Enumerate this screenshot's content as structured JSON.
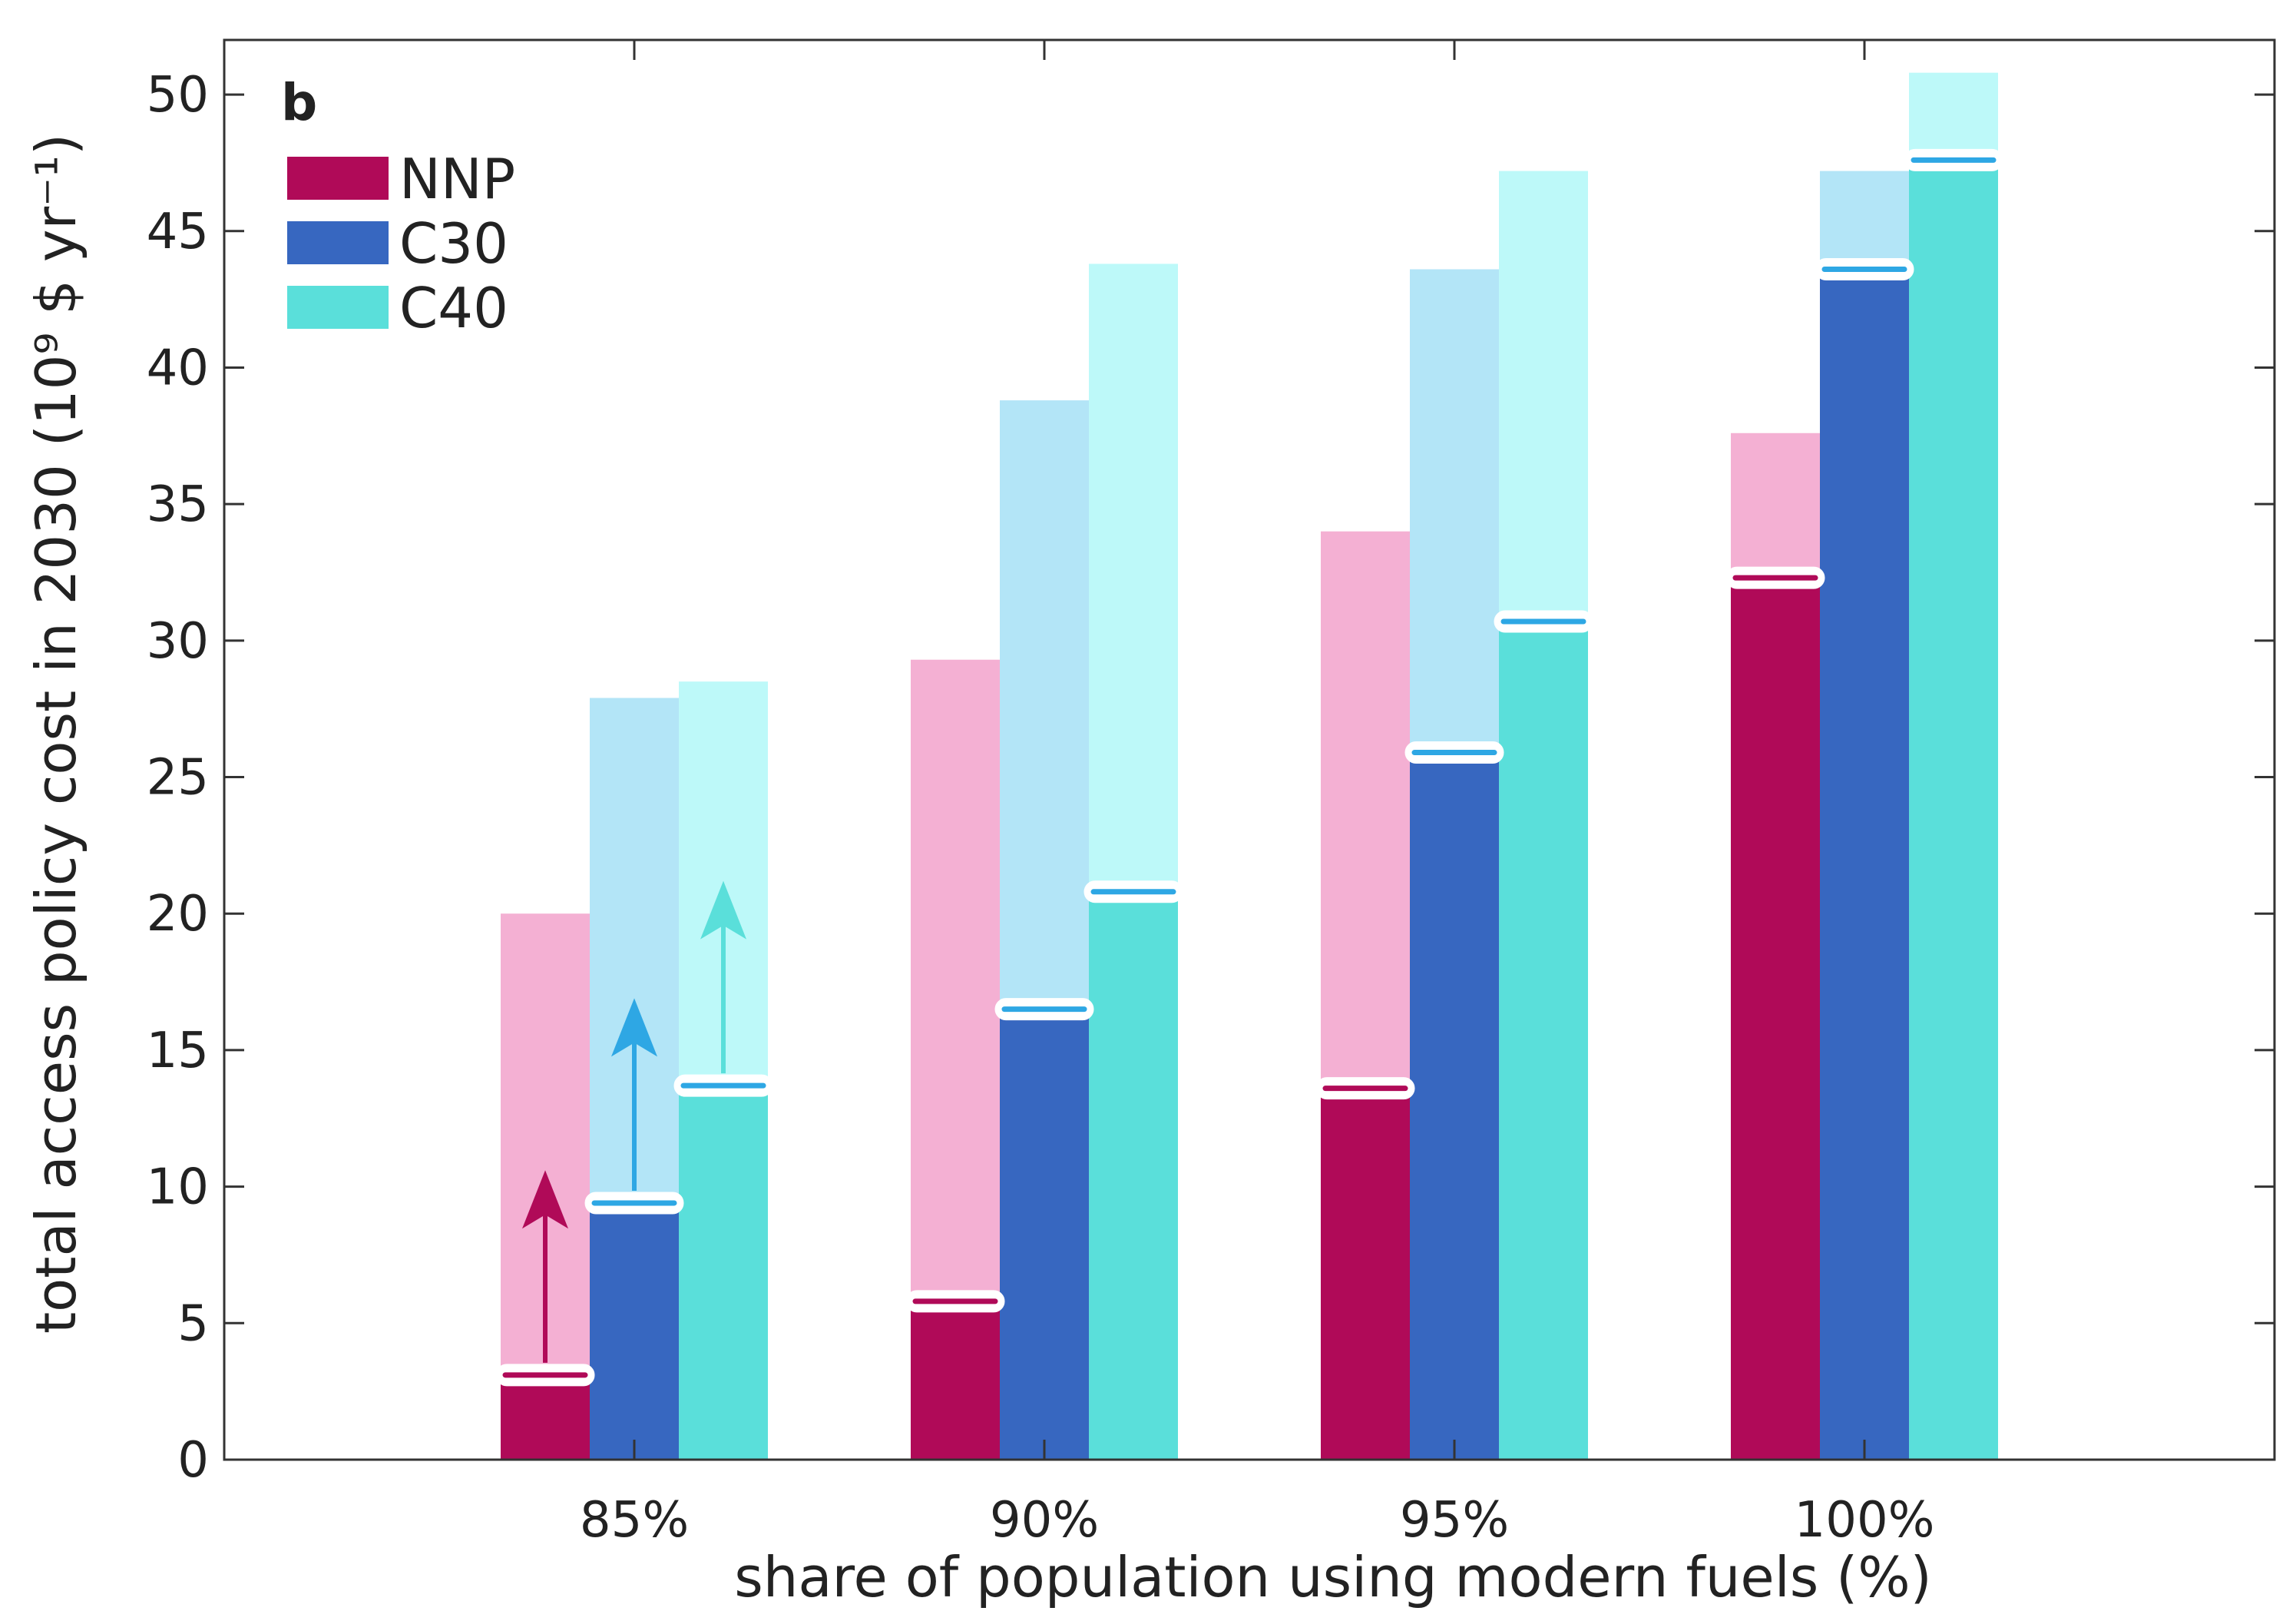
{
  "chart_data": {
    "type": "bar",
    "panel_label": "b",
    "xlabel": "share of population using modern fuels (%)",
    "ylabel": "total access policy cost in 2030 (10⁹ $ yr⁻¹)",
    "ylim": [
      0,
      52
    ],
    "yticks": [
      0,
      5,
      10,
      15,
      20,
      25,
      30,
      35,
      40,
      45,
      50
    ],
    "categories": [
      "85%",
      "90%",
      "95%",
      "100%"
    ],
    "legend_placement": "top-left",
    "grid": false,
    "series": [
      {
        "name": "NNP",
        "color": "#b00a58",
        "light_color": "#f4b0d3",
        "values": [
          3.1,
          5.8,
          13.6,
          32.3
        ],
        "upper_values": [
          20.0,
          29.3,
          34.0,
          37.6
        ]
      },
      {
        "name": "C30",
        "color": "#3767c0",
        "light_color": "#b3e5f7",
        "values": [
          9.4,
          16.5,
          25.9,
          43.6
        ],
        "upper_values": [
          27.9,
          38.8,
          43.6,
          47.2
        ]
      },
      {
        "name": "C40",
        "color": "#5adfda",
        "light_color": "#bdf9f9",
        "values": [
          13.7,
          20.8,
          30.7,
          47.6
        ],
        "upper_values": [
          28.5,
          43.8,
          47.2,
          50.8
        ]
      }
    ],
    "marker_color": "#2ea7e4",
    "arrows": [
      {
        "series": "NNP",
        "category": "85%",
        "from": 3.1,
        "to": 10.6,
        "color": "#b00a58"
      },
      {
        "series": "C30",
        "category": "85%",
        "from": 9.4,
        "to": 16.9,
        "color": "#2ea7e4"
      },
      {
        "series": "C40",
        "category": "85%",
        "from": 13.7,
        "to": 21.2,
        "color": "#5adfda"
      }
    ]
  }
}
